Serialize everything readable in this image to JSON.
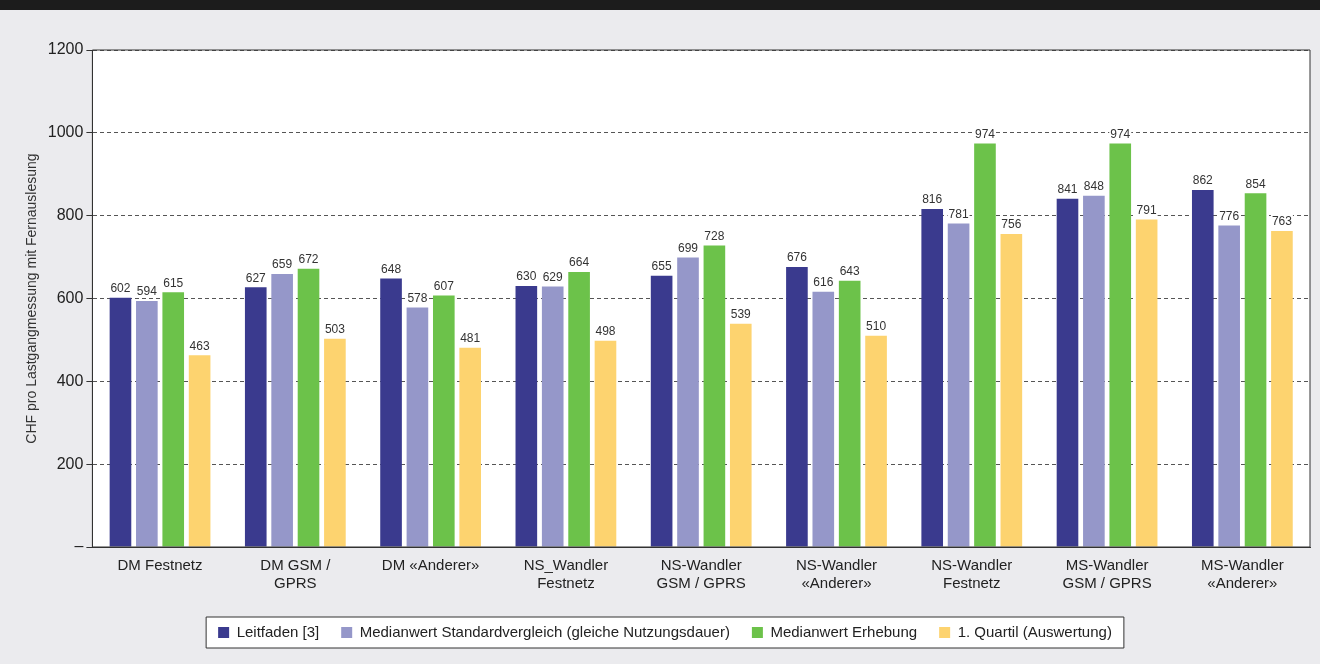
{
  "chart_data": {
    "type": "bar",
    "ylabel": "CHF pro Lastgangmessung mit Fernauslesung",
    "categories": [
      "DM Festnetz",
      "DM GSM / GPRS",
      "DM «Anderer»",
      "NS_Wandler Festnetz",
      "NS-Wandler GSM / GPRS",
      "NS-Wandler «Anderer»",
      "NS-Wandler Festnetz",
      "MS-Wandler GSM / GPRS",
      "MS-Wandler «Anderer»"
    ],
    "series": [
      {
        "name": "Leitfaden [3]",
        "color": "#3a3a8e",
        "values": [
          602,
          627,
          648,
          630,
          655,
          676,
          816,
          841,
          862
        ]
      },
      {
        "name": "Medianwert Standardvergleich (gleiche Nutzungsdauer)",
        "color": "#9597c9",
        "values": [
          594,
          659,
          578,
          629,
          699,
          616,
          781,
          848,
          776
        ]
      },
      {
        "name": "Medianwert Erhebung",
        "color": "#6cc24a",
        "values": [
          615,
          672,
          607,
          664,
          728,
          643,
          974,
          974,
          854
        ]
      },
      {
        "name": "1. Quartil (Auswertung)",
        "color": "#fdd36f",
        "values": [
          463,
          503,
          481,
          498,
          539,
          510,
          756,
          791,
          763
        ]
      }
    ],
    "ylim": [
      0,
      1200
    ],
    "yticks": [
      {
        "value": 0,
        "label": "–"
      },
      200,
      400,
      600,
      800,
      1000,
      1200
    ],
    "grid": "y",
    "legend": "bottom",
    "data_labels": true
  }
}
